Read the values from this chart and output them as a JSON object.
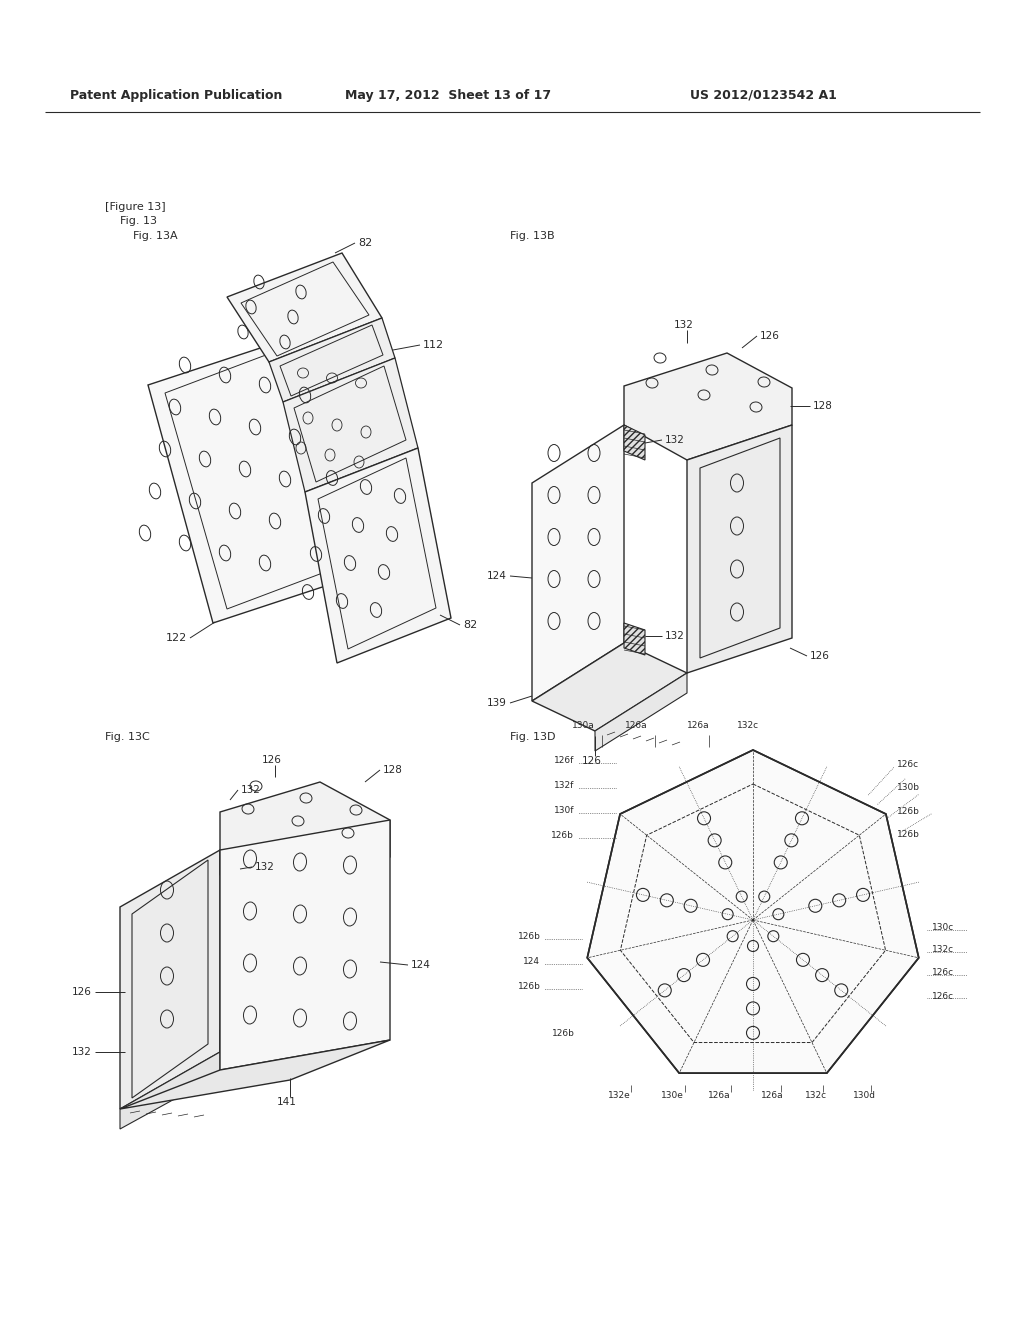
{
  "background_color": "#ffffff",
  "header_left": "Patent Application Publication",
  "header_mid": "May 17, 2012  Sheet 13 of 17",
  "header_right": "US 2012/0123542 A1",
  "figure_label": "[Figure 13]",
  "fig_label": "Fig. 13",
  "fig13a_label": "Fig. 13A",
  "fig13b_label": "Fig. 13B",
  "fig13c_label": "Fig. 13C",
  "fig13d_label": "Fig. 13D",
  "line_color": "#2a2a2a",
  "text_color": "#2a2a2a"
}
